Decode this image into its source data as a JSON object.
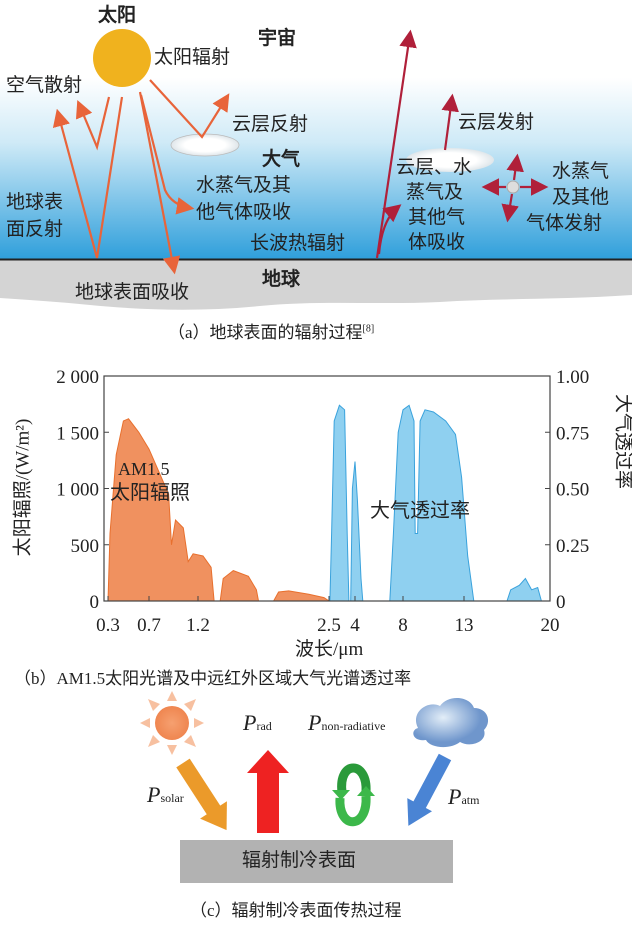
{
  "panel_a": {
    "sun": "太阳",
    "universe": "宇宙",
    "solar_radiation": "太阳辐射",
    "air_scattering": "空气散射",
    "cloud_reflection": "云层反射",
    "atmosphere": "大气",
    "gas_absorption": [
      "水蒸气及其",
      "他气体吸收"
    ],
    "longwave": "长波热辐射",
    "surface_reflection": [
      "地球表",
      "面反射"
    ],
    "surface_absorption": "地球表面吸收",
    "earth": "地球",
    "cloud_emission": "云层发射",
    "cloud_absorption": [
      "云层、水",
      "蒸气及",
      "其他气",
      "体吸收"
    ],
    "gas_emission": [
      "水蒸气",
      "及其他",
      "气体发射"
    ],
    "caption": "（a）地球表面的辐射过程",
    "caption_ref": "[8]"
  },
  "panel_b": {
    "caption": "（b）AM1.5太阳光谱及中远红外区域大气光谱透过率"
  },
  "chart_data": {
    "type": "area",
    "xlabel": "波长/μm",
    "ylabel": "太阳辐照/(W/m²)",
    "y2label": "大气透过率",
    "x_ticks": [
      "0.3",
      "0.7",
      "1.2",
      "2.5",
      "4",
      "8",
      "13",
      "20"
    ],
    "x_tick_values": [
      0.3,
      0.7,
      1.2,
      2.5,
      4,
      8,
      13,
      20
    ],
    "x_scale": "piecewise",
    "y_ticks": [
      "2 000",
      "1 500",
      "1 000",
      "500",
      "0"
    ],
    "y_tick_values": [
      2000,
      1500,
      1000,
      500,
      0
    ],
    "y2_ticks": [
      "1.00",
      "0.75",
      "0.50",
      "0.25",
      "0"
    ],
    "y2_tick_values": [
      1,
      0.75,
      0.5,
      0.25,
      0
    ],
    "ylim": [
      0,
      2000
    ],
    "y2lim": [
      0,
      1
    ],
    "grid": false,
    "series": [
      {
        "name": "AM1.5 太阳辐照",
        "label_lines": [
          "AM1.5",
          "太阳辐照"
        ],
        "axis": "left",
        "color": "#f0915f",
        "x": [
          0.3,
          0.32,
          0.38,
          0.45,
          0.5,
          0.6,
          0.7,
          0.8,
          0.9,
          0.93,
          0.97,
          1.05,
          1.1,
          1.15,
          1.25,
          1.33,
          1.36,
          1.42,
          1.45,
          1.55,
          1.7,
          1.78,
          1.8,
          1.95,
          2.0,
          2.1,
          2.3,
          2.45,
          2.5
        ],
        "y": [
          0,
          600,
          1300,
          1600,
          1620,
          1500,
          1350,
          1150,
          950,
          500,
          720,
          650,
          350,
          420,
          400,
          300,
          0,
          0,
          200,
          270,
          220,
          100,
          0,
          0,
          80,
          90,
          60,
          30,
          0
        ]
      },
      {
        "name": "大气透过率",
        "axis": "right",
        "color": "#8fd0f0",
        "x": [
          2.55,
          2.65,
          2.8,
          3.1,
          3.4,
          3.55,
          3.65,
          3.75,
          3.85,
          4.0,
          4.2,
          4.5,
          4.65,
          6.9,
          7.2,
          7.6,
          8.0,
          8.5,
          8.9,
          9.0,
          9.2,
          9.4,
          9.8,
          10.5,
          11.5,
          12.3,
          12.8,
          13.3,
          13.8,
          16.5,
          16.8,
          17.5,
          18.0,
          18.5,
          19.0,
          19.3
        ],
        "y": [
          0,
          0.3,
          0.8,
          0.87,
          0.85,
          0.3,
          0,
          0,
          0.5,
          0.62,
          0.45,
          0.1,
          0,
          0,
          0.3,
          0.75,
          0.85,
          0.87,
          0.8,
          0.3,
          0.3,
          0.8,
          0.85,
          0.84,
          0.8,
          0.74,
          0.55,
          0.2,
          0,
          0,
          0.05,
          0.07,
          0.1,
          0.05,
          0.06,
          0
        ]
      }
    ]
  },
  "panel_c": {
    "p": "P",
    "solar_sub": "solar",
    "rad_sub": "rad",
    "nonrad_sub": "non-radiative",
    "atm_sub": "atm",
    "surface": "辐射制冷表面",
    "caption": "（c）辐射制冷表面传热过程"
  },
  "colors": {
    "solar_arrow": "#e8643a",
    "ir_arrow": "#b0203a",
    "sky": "#3aa6dc",
    "ground": "#d4d4d4"
  }
}
